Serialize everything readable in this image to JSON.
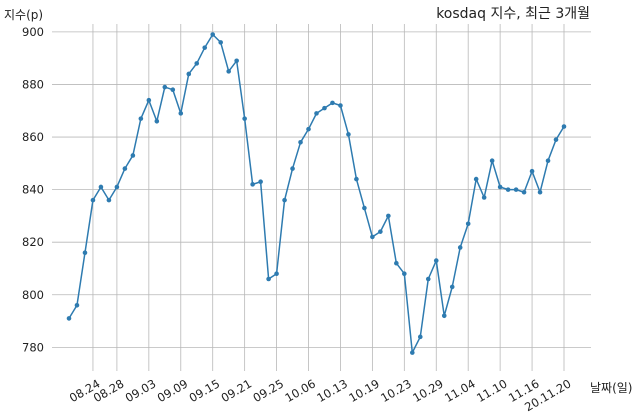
{
  "chart_data": {
    "type": "line",
    "title": "kosdaq 지수, 최근 3개월",
    "ylabel": "지수(p)",
    "xlabel": "날짜(일)",
    "ylim": [
      771,
      903
    ],
    "yticks": [
      780,
      800,
      820,
      840,
      860,
      880,
      900
    ],
    "xtick_labels": [
      "08.24",
      "08.28",
      "09.03",
      "09.09",
      "09.15",
      "09.21",
      "09.25",
      "10.06",
      "10.13",
      "10.19",
      "10.23",
      "10.29",
      "11.04",
      "11.10",
      "11.16",
      "20.11.20"
    ],
    "xtick_positions": [
      3,
      6,
      10,
      14,
      18,
      22,
      26,
      30,
      34,
      38,
      42,
      46,
      50,
      54,
      58,
      62
    ],
    "grid": true,
    "line_color": "#2e7bb0",
    "series": [
      {
        "values": [
          791,
          796,
          816,
          836,
          841,
          836,
          841,
          848,
          853,
          867,
          874,
          866,
          879,
          878,
          869,
          884,
          888,
          894,
          899,
          896,
          885,
          889,
          867,
          842,
          843,
          806,
          808,
          836,
          848,
          858,
          863,
          869,
          871,
          873,
          872,
          861,
          844,
          833,
          822,
          824,
          830,
          812,
          808,
          778,
          784,
          806,
          813,
          792,
          803,
          818,
          827,
          844,
          837,
          851,
          841,
          840,
          840,
          839,
          847,
          839,
          851,
          859,
          864
        ]
      }
    ]
  }
}
